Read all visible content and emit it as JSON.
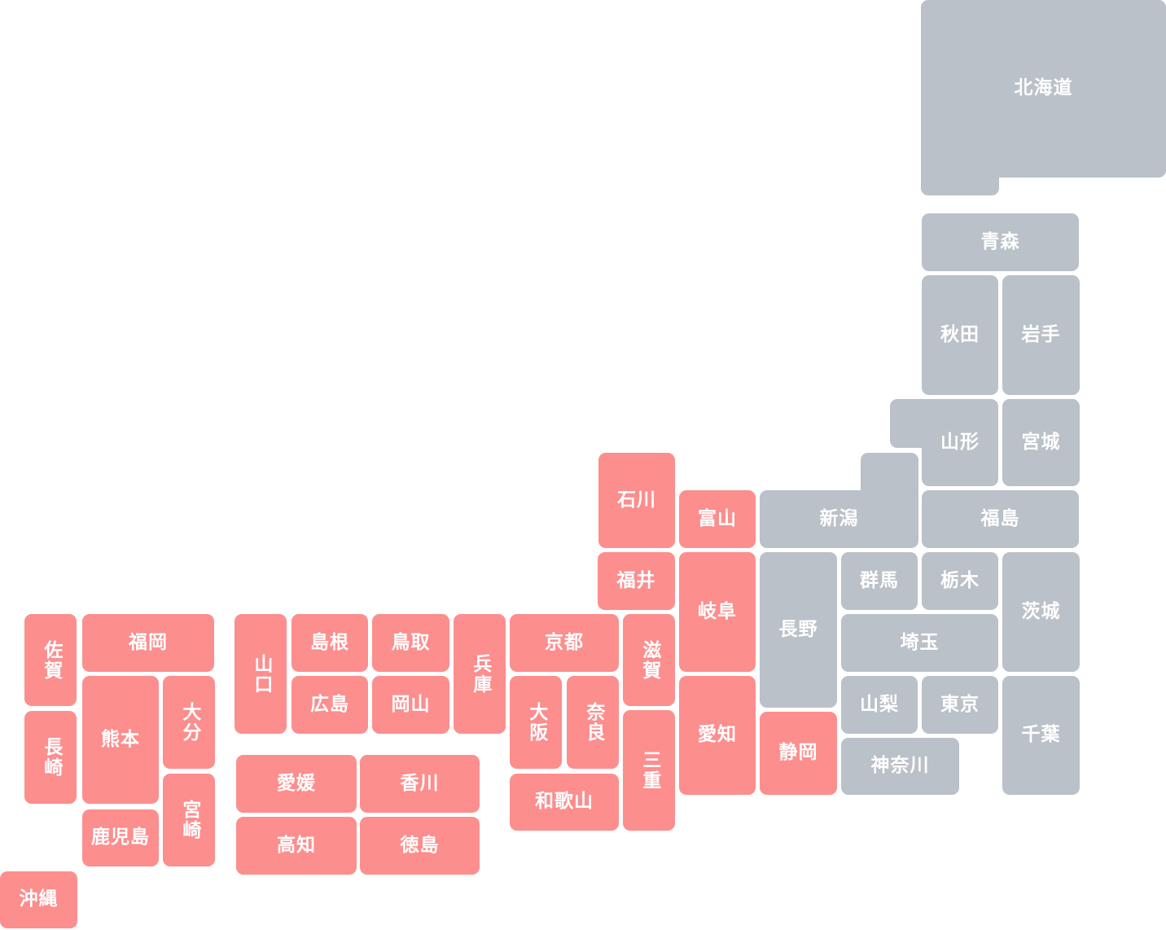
{
  "colors": {
    "highlighted": "#fd8e8e",
    "default": "#bac1c8",
    "label": "#ffffff"
  },
  "prefectures": [
    {
      "id": "hokkaido",
      "name": "北海道",
      "group": "default"
    },
    {
      "id": "aomori",
      "name": "青森",
      "group": "default"
    },
    {
      "id": "akita",
      "name": "秋田",
      "group": "default"
    },
    {
      "id": "iwate",
      "name": "岩手",
      "group": "default"
    },
    {
      "id": "yamagata",
      "name": "山形",
      "group": "default"
    },
    {
      "id": "miyagi",
      "name": "宮城",
      "group": "default"
    },
    {
      "id": "niigata",
      "name": "新潟",
      "group": "default"
    },
    {
      "id": "fukushima",
      "name": "福島",
      "group": "default"
    },
    {
      "id": "nagano",
      "name": "長野",
      "group": "default"
    },
    {
      "id": "gunma",
      "name": "群馬",
      "group": "default"
    },
    {
      "id": "tochigi",
      "name": "栃木",
      "group": "default"
    },
    {
      "id": "ibaraki",
      "name": "茨城",
      "group": "default"
    },
    {
      "id": "saitama",
      "name": "埼玉",
      "group": "default"
    },
    {
      "id": "yamanashi",
      "name": "山梨",
      "group": "default"
    },
    {
      "id": "tokyo",
      "name": "東京",
      "group": "default"
    },
    {
      "id": "chiba",
      "name": "千葉",
      "group": "default"
    },
    {
      "id": "kanagawa",
      "name": "神奈川",
      "group": "default"
    },
    {
      "id": "ishikawa",
      "name": "石川",
      "group": "highlighted"
    },
    {
      "id": "toyama",
      "name": "富山",
      "group": "highlighted"
    },
    {
      "id": "fukui",
      "name": "福井",
      "group": "highlighted"
    },
    {
      "id": "gifu",
      "name": "岐阜",
      "group": "highlighted"
    },
    {
      "id": "aichi",
      "name": "愛知",
      "group": "highlighted"
    },
    {
      "id": "shizuoka",
      "name": "静岡",
      "group": "highlighted"
    },
    {
      "id": "shiga",
      "name": "滋賀",
      "group": "highlighted"
    },
    {
      "id": "mie",
      "name": "三重",
      "group": "highlighted"
    },
    {
      "id": "kyoto",
      "name": "京都",
      "group": "highlighted"
    },
    {
      "id": "osaka",
      "name": "大阪",
      "group": "highlighted"
    },
    {
      "id": "nara",
      "name": "奈良",
      "group": "highlighted"
    },
    {
      "id": "wakayama",
      "name": "和歌山",
      "group": "highlighted"
    },
    {
      "id": "hyogo",
      "name": "兵庫",
      "group": "highlighted"
    },
    {
      "id": "shimane",
      "name": "島根",
      "group": "highlighted"
    },
    {
      "id": "tottori",
      "name": "鳥取",
      "group": "highlighted"
    },
    {
      "id": "hiroshima",
      "name": "広島",
      "group": "highlighted"
    },
    {
      "id": "okayama",
      "name": "岡山",
      "group": "highlighted"
    },
    {
      "id": "yamaguchi",
      "name": "山口",
      "group": "highlighted"
    },
    {
      "id": "ehime",
      "name": "愛媛",
      "group": "highlighted"
    },
    {
      "id": "kagawa",
      "name": "香川",
      "group": "highlighted"
    },
    {
      "id": "kochi",
      "name": "高知",
      "group": "highlighted"
    },
    {
      "id": "tokushima",
      "name": "徳島",
      "group": "highlighted"
    },
    {
      "id": "fukuoka",
      "name": "福岡",
      "group": "highlighted"
    },
    {
      "id": "saga",
      "name": "佐賀",
      "group": "highlighted"
    },
    {
      "id": "nagasaki",
      "name": "長崎",
      "group": "highlighted"
    },
    {
      "id": "kumamoto",
      "name": "熊本",
      "group": "highlighted"
    },
    {
      "id": "oita",
      "name": "大分",
      "group": "highlighted"
    },
    {
      "id": "miyazaki",
      "name": "宮崎",
      "group": "highlighted"
    },
    {
      "id": "kagoshima",
      "name": "鹿児島",
      "group": "highlighted"
    },
    {
      "id": "okinawa",
      "name": "沖縄",
      "group": "highlighted"
    }
  ]
}
